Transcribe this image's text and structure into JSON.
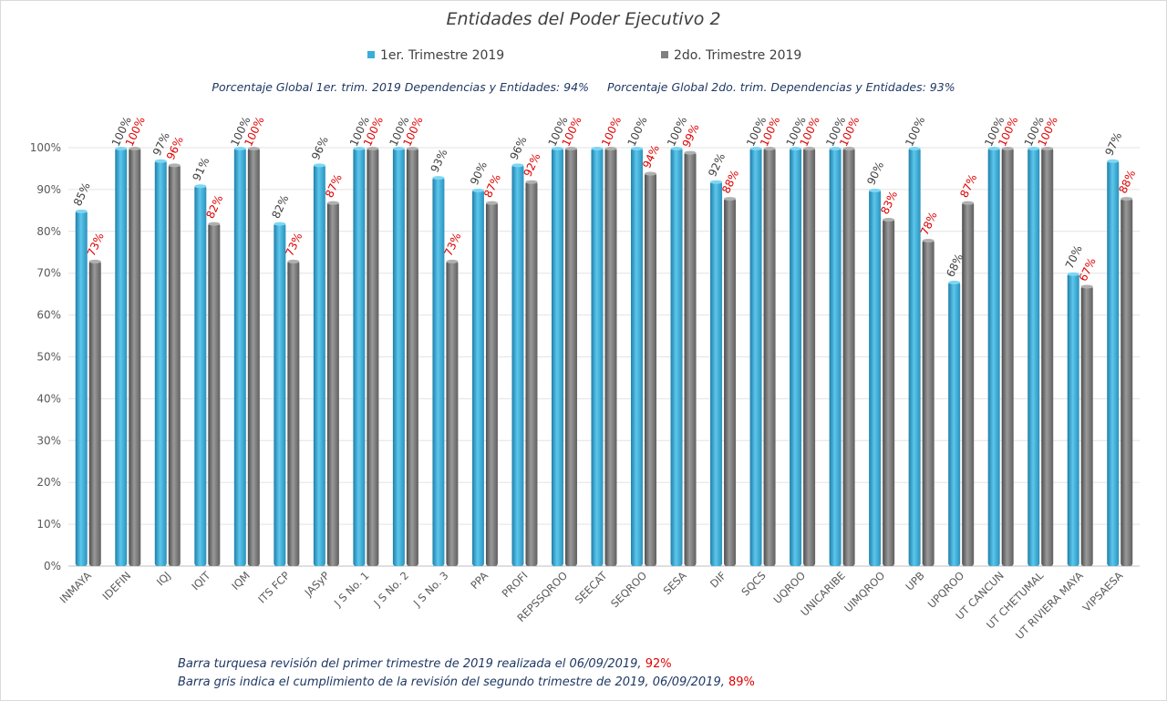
{
  "chart_data": {
    "type": "bar",
    "title": "Entidades del Poder Ejecutivo 2",
    "categories": [
      "INMAYA",
      "IDEFIN",
      "IQJ",
      "IQIT",
      "IQM",
      "ITS FCP",
      "JASyP",
      "J S No. 1",
      "J S No. 2",
      "J S No. 3",
      "PPA",
      "PROFI",
      "REPSSQROO",
      "SEECAT",
      "SEQROO",
      "SESA",
      "DIF",
      "SQCS",
      "UQROO",
      "UNICARIBE",
      "UIMQROO",
      "UPB",
      "UPQROO",
      "UT CANCUN",
      "UT CHETUMAL",
      "UT RIVIERA MAYA",
      "VIPSAESA"
    ],
    "series": [
      {
        "name": "1er. Trimestre 2019",
        "color": "#3aaed8",
        "values": [
          85,
          100,
          97,
          91,
          100,
          82,
          96,
          100,
          100,
          93,
          90,
          96,
          100,
          100,
          100,
          100,
          92,
          100,
          100,
          100,
          90,
          100,
          68,
          100,
          100,
          70,
          97
        ],
        "labels": [
          "85%",
          "100%",
          "97%",
          "91%",
          "100%",
          "82%",
          "96%",
          "100%",
          "100%",
          "93%",
          "90%",
          "96%",
          "100%",
          "",
          "100%",
          "100%",
          "92%",
          "100%",
          "100%",
          "100%",
          "90%",
          "100%",
          "68%",
          "100%",
          "100%",
          "70%",
          "97%"
        ]
      },
      {
        "name": "2do. Trimestre 2019",
        "color": "#7f7f7f",
        "values": [
          73,
          100,
          96,
          82,
          100,
          73,
          87,
          100,
          100,
          73,
          87,
          92,
          100,
          100,
          94,
          99,
          88,
          100,
          100,
          100,
          83,
          78,
          87,
          100,
          100,
          67,
          88
        ],
        "labels": [
          "73%",
          "100%",
          "96%",
          "82%",
          "100%",
          "73%",
          "87%",
          "100%",
          "100%",
          "73%",
          "87%",
          "92%",
          "100%",
          "100%",
          "94%",
          "99%",
          "88%",
          "100%",
          "100%",
          "100%",
          "83%",
          "78%",
          "87%",
          "100%",
          "100%",
          "67%",
          "88%"
        ]
      }
    ],
    "ylim": [
      0,
      100
    ],
    "yticks": [
      "0%",
      "10%",
      "20%",
      "30%",
      "40%",
      "50%",
      "60%",
      "70%",
      "80%",
      "90%",
      "100%"
    ],
    "grid": true,
    "legend": "top-center",
    "label_colors": {
      "series1": "#404040",
      "series2": "#e00000"
    }
  },
  "global_line": {
    "first": "Porcentaje Global 1er. trim. 2019 Dependencias y Entidades: 94%",
    "second": "Porcentaje Global 2do. trim. Dependencias y Entidades: 93%"
  },
  "footnotes": {
    "line1_text": "Barra turquesa revisión del primer trimestre de 2019 realizada el 06/09/2019,",
    "line1_value": "92%",
    "line2_text": "Barra gris indica el cumplimiento de la revisión del segundo trimestre de 2019, 06/09/2019,",
    "line2_value": "89%"
  }
}
